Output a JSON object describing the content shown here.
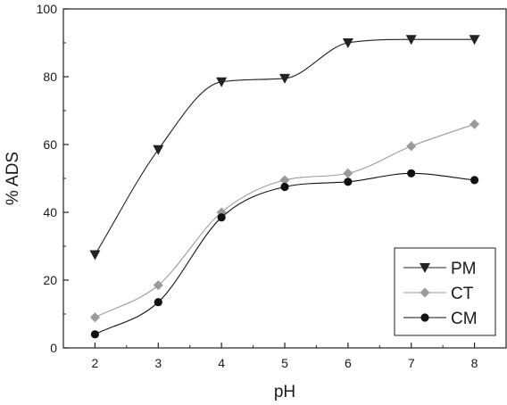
{
  "chart_data": {
    "type": "line",
    "title": "",
    "xlabel": "pH",
    "ylabel": "% ADS",
    "xlim": [
      1.5,
      8.5
    ],
    "ylim": [
      0,
      100
    ],
    "xticks": [
      2,
      3,
      4,
      5,
      6,
      7,
      8
    ],
    "yticks": [
      0,
      20,
      40,
      60,
      80,
      100
    ],
    "grid": false,
    "legend_position": "bottom-right",
    "x": [
      2,
      3,
      4,
      5,
      6,
      7,
      8
    ],
    "series": [
      {
        "name": "PM",
        "values": [
          27.5,
          58.5,
          78.5,
          79.5,
          90,
          91,
          91
        ],
        "color": "#222222",
        "marker": "triangle-down"
      },
      {
        "name": "CT",
        "values": [
          9,
          18.5,
          40,
          49.5,
          51.5,
          59.5,
          66
        ],
        "color": "#9a9a9a",
        "marker": "diamond"
      },
      {
        "name": "CM",
        "values": [
          4,
          13.5,
          38.5,
          47.5,
          49,
          51.5,
          49.5
        ],
        "color": "#111111",
        "marker": "circle"
      }
    ]
  }
}
